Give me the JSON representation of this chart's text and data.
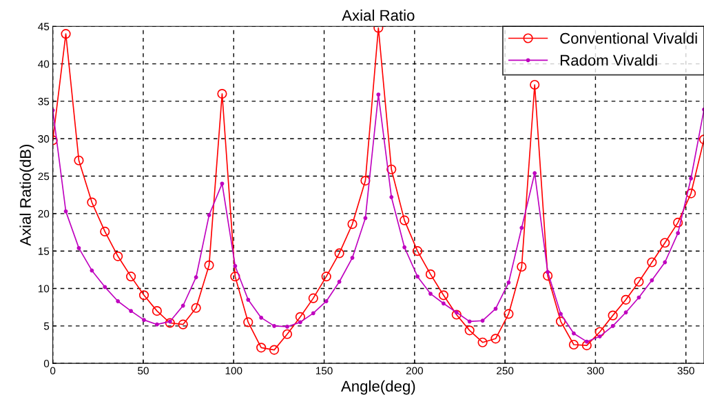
{
  "chart_data": {
    "type": "line",
    "title": "Axial Ratio",
    "xlabel": "Angle(deg)",
    "ylabel": "Axial Ratio(dB)",
    "x": [
      0,
      7.2,
      14.4,
      21.6,
      28.8,
      36,
      43.2,
      50.4,
      57.6,
      64.8,
      72,
      79.2,
      86.4,
      93.6,
      100.8,
      108,
      115.2,
      122.4,
      129.6,
      136.8,
      144,
      151.2,
      158.4,
      165.6,
      172.8,
      180,
      187.2,
      194.4,
      201.6,
      208.8,
      216,
      223.2,
      230.4,
      237.6,
      244.8,
      252,
      259.2,
      266.4,
      273.6,
      280.8,
      288,
      295.2,
      302.4,
      309.6,
      316.8,
      324,
      331.2,
      338.4,
      345.6,
      352.8,
      360
    ],
    "series": [
      {
        "name": "Conventional Vivaldi",
        "color": "#ff0000",
        "marker": "circle",
        "values": [
          29.8,
          44,
          27.1,
          21.5,
          17.6,
          14.3,
          11.6,
          9.1,
          7,
          5.4,
          5.2,
          7.4,
          13.1,
          36,
          11.6,
          5.5,
          2.1,
          1.8,
          3.9,
          6.2,
          8.7,
          11.6,
          14.7,
          18.6,
          24.4,
          44.8,
          25.9,
          19.1,
          15,
          11.9,
          9.1,
          6.5,
          4.4,
          2.8,
          3.3,
          6.6,
          12.9,
          37.2,
          11.7,
          5.6,
          2.5,
          2.4,
          4.2,
          6.4,
          8.5,
          10.9,
          13.5,
          16.1,
          18.8,
          22.7,
          29.9
        ]
      },
      {
        "name": "Radom Vivaldi",
        "color": "#bf00bf",
        "marker": "dot",
        "values": [
          33.8,
          20.3,
          15.4,
          12.4,
          10.2,
          8.3,
          7,
          5.8,
          5.2,
          5.6,
          7.7,
          11.5,
          19.8,
          24,
          13,
          8.5,
          6.1,
          5,
          4.9,
          5.5,
          6.7,
          8.3,
          10.9,
          14.1,
          19.4,
          35.9,
          22.2,
          15.5,
          11.6,
          9.3,
          8,
          6.8,
          5.6,
          5.7,
          7.3,
          10.8,
          18.1,
          25.4,
          12.2,
          6.6,
          4,
          2.9,
          3.6,
          5,
          6.8,
          8.8,
          11.1,
          13.5,
          17.4,
          24.7,
          33.9
        ]
      }
    ],
    "xlim": [
      0,
      360
    ],
    "xticks": [
      0,
      50,
      100,
      150,
      200,
      250,
      300,
      350
    ],
    "ylim": [
      0,
      45
    ],
    "yticks": [
      0,
      5,
      10,
      15,
      20,
      25,
      30,
      35,
      40,
      45
    ],
    "grid": true,
    "legend": "top right",
    "line_style": "solid"
  }
}
